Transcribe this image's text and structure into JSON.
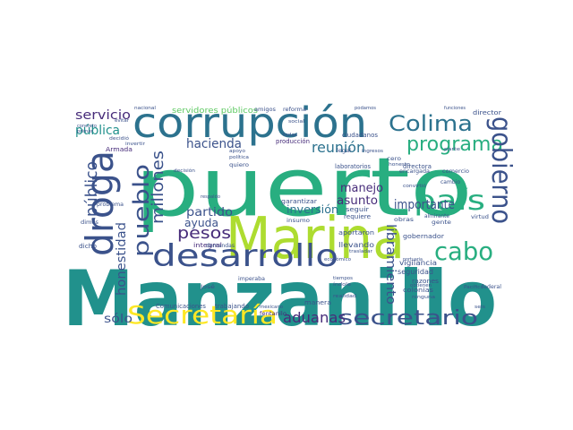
{
  "cloud": {
    "palette": [
      "#440154",
      "#472c7a",
      "#3b528b",
      "#2c728e",
      "#21918c",
      "#28ae80",
      "#5ec962",
      "#addc30",
      "#fde725"
    ],
    "words": [
      {
        "text": "Manzanillo",
        "color": "#21918c"
      },
      {
        "text": "puerto",
        "color": "#28ae80"
      },
      {
        "text": "Marina",
        "color": "#addc30"
      },
      {
        "text": "corrupción",
        "color": "#2c728e"
      },
      {
        "text": "desarrollo",
        "color": "#3b528b"
      },
      {
        "text": "droga",
        "color": "#3b528b"
      },
      {
        "text": "Secretaría",
        "color": "#fde725"
      },
      {
        "text": "secretario",
        "color": "#3b528b"
      },
      {
        "text": "Colima",
        "color": "#2c728e"
      },
      {
        "text": "programa",
        "color": "#28ae80"
      },
      {
        "text": "gobierno",
        "color": "#3b528b"
      },
      {
        "text": "país",
        "color": "#28ae80"
      },
      {
        "text": "cabo",
        "color": "#28ae80"
      },
      {
        "text": "pueblo",
        "color": "#3b528b"
      },
      {
        "text": "aduanas",
        "color": "#472c7a"
      },
      {
        "text": "pesos",
        "color": "#472c7a"
      },
      {
        "text": "millones",
        "color": "#3b528b"
      },
      {
        "text": "público",
        "color": "#3b528b"
      },
      {
        "text": "honestidad",
        "color": "#3b528b"
      },
      {
        "text": "hacienda",
        "color": "#3b528b"
      },
      {
        "text": "reunión",
        "color": "#2c728e"
      },
      {
        "text": "libramiento",
        "color": "#3b528b"
      },
      {
        "text": "inversión",
        "color": "#2c728e"
      },
      {
        "text": "importante",
        "color": "#3b528b"
      },
      {
        "text": "asunto",
        "color": "#472c7a"
      },
      {
        "text": "manejo",
        "color": "#472c7a"
      },
      {
        "text": "ayuda",
        "color": "#3b528b"
      },
      {
        "text": "partido",
        "color": "#3b528b"
      },
      {
        "text": "sólo",
        "color": "#3b528b"
      },
      {
        "text": "servicio",
        "color": "#472c7a"
      },
      {
        "text": "pública",
        "color": "#21918c"
      },
      {
        "text": "servidores públicos",
        "color": "#5ec962"
      },
      {
        "text": "integral",
        "color": "#472c7a"
      },
      {
        "text": "garantizar",
        "color": "#3b528b"
      },
      {
        "text": "gobernador",
        "color": "#3b528b"
      },
      {
        "text": "llevando",
        "color": "#3b528b"
      },
      {
        "text": "vigilancia",
        "color": "#3b528b"
      },
      {
        "text": "seguridad",
        "color": "#3b528b"
      },
      {
        "text": "colonias",
        "color": "#3b528b"
      },
      {
        "text": "razones",
        "color": "#3b528b"
      },
      {
        "text": "directora",
        "color": "#3b528b"
      },
      {
        "text": "Comunicaciones",
        "color": "#3b528b"
      },
      {
        "text": "trabajando",
        "color": "#3b528b"
      },
      {
        "text": "fentanilo",
        "color": "#472c7a"
      },
      {
        "text": "manera",
        "color": "#3b528b"
      },
      {
        "text": "ciudadanos",
        "color": "#3b528b"
      },
      {
        "text": "laboratorios",
        "color": "#3b528b"
      },
      {
        "text": "encargada",
        "color": "#3b528b"
      },
      {
        "text": "comercio",
        "color": "#3b528b"
      },
      {
        "text": "director",
        "color": "#3b528b"
      },
      {
        "text": "producción",
        "color": "#472c7a"
      },
      {
        "text": "aportaron",
        "color": "#3b528b"
      },
      {
        "text": "requiere",
        "color": "#3b528b"
      },
      {
        "text": "seguir",
        "color": "#3b528b"
      },
      {
        "text": "gente",
        "color": "#3b528b"
      },
      {
        "text": "obras",
        "color": "#3b528b"
      },
      {
        "text": "demandas",
        "color": "#3b528b"
      },
      {
        "text": "dicho",
        "color": "#3b528b"
      },
      {
        "text": "problema",
        "color": "#3b528b"
      },
      {
        "text": "dimos",
        "color": "#3b528b"
      },
      {
        "text": "respaldo",
        "color": "#3b528b"
      },
      {
        "text": "quiero",
        "color": "#3b528b"
      },
      {
        "text": "decisión",
        "color": "#3b528b"
      },
      {
        "text": "amigos",
        "color": "#3b528b"
      },
      {
        "text": "reforma",
        "color": "#3b528b"
      },
      {
        "text": "Armada",
        "color": "#472c7a"
      },
      {
        "text": "José",
        "color": "#3b528b"
      },
      {
        "text": "insumo",
        "color": "#3b528b"
      },
      {
        "text": "cero",
        "color": "#3b528b"
      },
      {
        "text": "honesto",
        "color": "#3b528b"
      },
      {
        "text": "cambio",
        "color": "#3b528b"
      },
      {
        "text": "virtud",
        "color": "#3b528b"
      },
      {
        "text": "federal",
        "color": "#3b528b"
      },
      {
        "text": "obtienen",
        "color": "#3b528b"
      },
      {
        "text": "ninguna",
        "color": "#3b528b"
      },
      {
        "text": "portuaria",
        "color": "#3b528b"
      },
      {
        "text": "económico",
        "color": "#3b528b"
      },
      {
        "text": "trasladar",
        "color": "#3b528b"
      },
      {
        "text": "realidad",
        "color": "#3b528b"
      },
      {
        "text": "índole",
        "color": "#3b528b"
      },
      {
        "text": "tiempos",
        "color": "#3b528b"
      },
      {
        "text": "podamos",
        "color": "#3b528b"
      },
      {
        "text": "legal",
        "color": "#3b528b"
      },
      {
        "text": "funciones",
        "color": "#3b528b"
      },
      {
        "text": "imperaba",
        "color": "#3b528b"
      },
      {
        "text": "Pacífico",
        "color": "#3b528b"
      },
      {
        "text": "almirante",
        "color": "#3b528b"
      },
      {
        "text": "apoyo",
        "color": "#3b528b"
      },
      {
        "text": "ingresos",
        "color": "#3b528b"
      },
      {
        "text": "concreto",
        "color": "#3b528b"
      },
      {
        "text": "primer",
        "color": "#3b528b"
      },
      {
        "text": "evitar",
        "color": "#3b528b"
      },
      {
        "text": "nacional",
        "color": "#3b528b"
      },
      {
        "text": "decidió",
        "color": "#3b528b"
      },
      {
        "text": "invertir",
        "color": "#3b528b"
      },
      {
        "text": "convirtió",
        "color": "#3b528b"
      },
      {
        "text": "mexicano",
        "color": "#3b528b"
      },
      {
        "text": "seis",
        "color": "#3b528b"
      },
      {
        "text": "todas",
        "color": "#3b528b"
      },
      {
        "text": "política",
        "color": "#3b528b"
      },
      {
        "text": "social",
        "color": "#3b528b"
      },
      {
        "text": "parte",
        "color": "#3b528b"
      }
    ]
  }
}
